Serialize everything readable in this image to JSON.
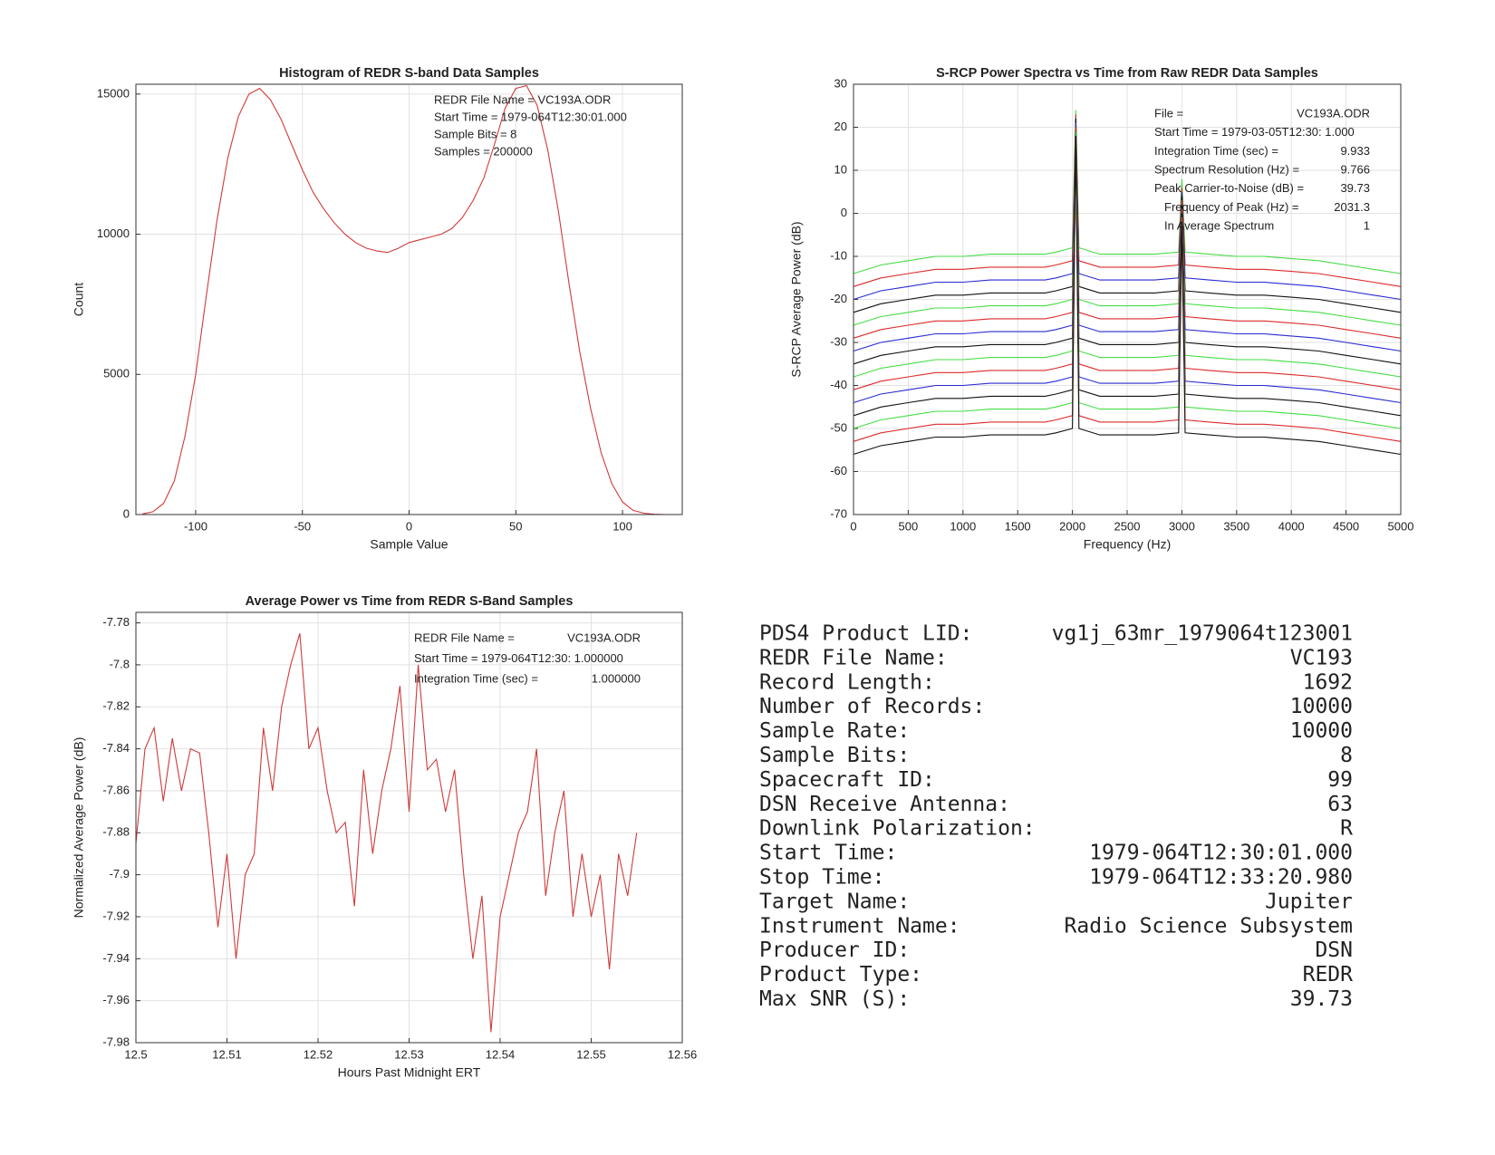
{
  "chart_data": [
    {
      "type": "line",
      "title": "Histogram of REDR S-band Data Samples",
      "xlabel": "Sample Value",
      "ylabel": "Count",
      "xlim": [
        -128,
        128
      ],
      "ylim": [
        0,
        15350
      ],
      "xticks": [
        -100,
        -50,
        0,
        50,
        100
      ],
      "yticks": [
        0,
        5000,
        10000,
        15000
      ],
      "grid": true,
      "color": "#d03a3a",
      "annotations": [
        "REDR File Name = VC193A.ODR",
        "Start Time = 1979-064T12:30:01.000",
        "Sample Bits = 8",
        "Samples = 200000"
      ],
      "x": [
        -125,
        -120,
        -115,
        -110,
        -105,
        -100,
        -95,
        -90,
        -85,
        -80,
        -75,
        -70,
        -65,
        -60,
        -55,
        -50,
        -45,
        -40,
        -35,
        -30,
        -25,
        -20,
        -15,
        -10,
        -5,
        0,
        5,
        10,
        15,
        20,
        25,
        30,
        35,
        40,
        45,
        50,
        55,
        60,
        65,
        70,
        75,
        80,
        85,
        90,
        95,
        100,
        105,
        110,
        115,
        120,
        125
      ],
      "values": [
        20,
        100,
        400,
        1200,
        2800,
        5000,
        7800,
        10500,
        12700,
        14200,
        15000,
        15200,
        14800,
        14100,
        13200,
        12300,
        11500,
        10900,
        10400,
        10000,
        9700,
        9500,
        9400,
        9350,
        9500,
        9700,
        9800,
        9900,
        10000,
        10200,
        10600,
        11200,
        12000,
        13200,
        14500,
        15200,
        15300,
        14600,
        13000,
        10800,
        8200,
        5800,
        3800,
        2200,
        1100,
        450,
        150,
        50,
        10,
        0,
        0
      ]
    },
    {
      "type": "line",
      "title": "S-RCP Power Spectra vs Time from Raw REDR Data Samples",
      "xlabel": "Frequency (Hz)",
      "ylabel": "S-RCP Average Power (dB)",
      "xlim": [
        0,
        5000
      ],
      "ylim": [
        -70,
        30
      ],
      "xticks": [
        0,
        500,
        1000,
        1500,
        2000,
        2500,
        3000,
        3500,
        4000,
        4500,
        5000
      ],
      "yticks": [
        -70,
        -60,
        -50,
        -40,
        -30,
        -20,
        -10,
        0,
        10,
        20,
        30
      ],
      "grid": true,
      "annotations": [
        [
          "File =",
          "VC193A.ODR"
        ],
        [
          "Start Time = 1979-03-05T12:30: 1.000",
          ""
        ],
        [
          "Integration Time (sec) =",
          "9.933"
        ],
        [
          "Spectrum Resolution (Hz) =",
          "9.766"
        ],
        [
          "Peak Carrier-to-Noise (dB) =",
          "39.73"
        ],
        [
          "Frequency of Peak (Hz) =",
          "2031.3"
        ],
        [
          "In Average Spectrum",
          "1"
        ]
      ],
      "x": [
        0,
        250,
        500,
        750,
        1000,
        1250,
        1500,
        1750,
        1850,
        2000,
        2031,
        2060,
        2250,
        2500,
        2750,
        2970,
        3000,
        3030,
        3250,
        3500,
        3750,
        4000,
        4250,
        4500,
        4750,
        5000
      ],
      "series": [
        {
          "color": "#44dd44",
          "values": [
            -14,
            -12,
            -11,
            -10,
            -10,
            -9.5,
            -9.5,
            -9.5,
            -9,
            -8,
            24,
            -8,
            -9.5,
            -9.5,
            -9.5,
            -9,
            8,
            -9,
            -9.5,
            -10,
            -10,
            -10.5,
            -11,
            -12,
            -13,
            -14
          ]
        },
        {
          "color": "#dd2a2a",
          "values": [
            -17,
            -15,
            -14,
            -13,
            -13,
            -12.5,
            -12.5,
            -12.5,
            -12,
            -11,
            23,
            -11,
            -12.5,
            -12.5,
            -12.5,
            -12,
            6,
            -12,
            -12.5,
            -13,
            -13,
            -13.5,
            -14,
            -15,
            -16,
            -17
          ]
        },
        {
          "color": "#2a2ad0",
          "values": [
            -20,
            -18,
            -17,
            -16,
            -16,
            -15.5,
            -15.5,
            -15.5,
            -15,
            -14,
            22,
            -14,
            -15.5,
            -15.5,
            -15.5,
            -15,
            5,
            -15,
            -15.5,
            -16,
            -16,
            -16.5,
            -17,
            -18,
            -19,
            -20
          ]
        },
        {
          "color": "#111111",
          "values": [
            -23,
            -21,
            -20,
            -19,
            -19,
            -18.5,
            -18.5,
            -18.5,
            -18,
            -17,
            22,
            -17,
            -18.5,
            -18.5,
            -18.5,
            -18,
            4,
            -18,
            -18.5,
            -19,
            -19,
            -19.5,
            -20,
            -21,
            -22,
            -23
          ]
        },
        {
          "color": "#44dd44",
          "values": [
            -26,
            -24,
            -23,
            -22,
            -22,
            -21.5,
            -21.5,
            -21.5,
            -21,
            -20,
            21,
            -20,
            -21.5,
            -21.5,
            -21.5,
            -21,
            3,
            -21,
            -21.5,
            -22,
            -22,
            -22.5,
            -23,
            -24,
            -25,
            -26
          ]
        },
        {
          "color": "#dd2a2a",
          "values": [
            -29,
            -27,
            -26,
            -25,
            -25,
            -24.5,
            -24.5,
            -24.5,
            -24,
            -23,
            21,
            -23,
            -24.5,
            -24.5,
            -24.5,
            -24,
            3,
            -24,
            -24.5,
            -25,
            -25,
            -25.5,
            -26,
            -27,
            -28,
            -29
          ]
        },
        {
          "color": "#2a2ad0",
          "values": [
            -32,
            -30,
            -29,
            -28,
            -28,
            -27.5,
            -27.5,
            -27.5,
            -27,
            -26,
            21,
            -26,
            -27.5,
            -27.5,
            -27.5,
            -27,
            2,
            -27,
            -27.5,
            -28,
            -28,
            -28.5,
            -29,
            -30,
            -31,
            -32
          ]
        },
        {
          "color": "#111111",
          "values": [
            -35,
            -33,
            -32,
            -31,
            -31,
            -30.5,
            -30.5,
            -30.5,
            -30,
            -29,
            20,
            -29,
            -30.5,
            -30.5,
            -30.5,
            -30,
            2,
            -30,
            -30.5,
            -31,
            -31,
            -31.5,
            -32,
            -33,
            -34,
            -35
          ]
        },
        {
          "color": "#44dd44",
          "values": [
            -38,
            -36,
            -35,
            -34,
            -34,
            -33.5,
            -33.5,
            -33.5,
            -33,
            -32,
            20,
            -32,
            -33.5,
            -33.5,
            -33.5,
            -33,
            1,
            -33,
            -33.5,
            -34,
            -34,
            -34.5,
            -35,
            -36,
            -37,
            -38
          ]
        },
        {
          "color": "#dd2a2a",
          "values": [
            -41,
            -39,
            -38,
            -37,
            -37,
            -36.5,
            -36.5,
            -36.5,
            -36,
            -35,
            20,
            -35,
            -36.5,
            -36.5,
            -36.5,
            -36,
            1,
            -36,
            -36.5,
            -37,
            -37,
            -37.5,
            -38,
            -39,
            -40,
            -41
          ]
        },
        {
          "color": "#2a2ad0",
          "values": [
            -44,
            -42,
            -41,
            -40,
            -40,
            -39.5,
            -39.5,
            -39.5,
            -39,
            -38,
            19,
            -38,
            -39.5,
            -39.5,
            -39.5,
            -39,
            0,
            -39,
            -39.5,
            -40,
            -40,
            -40.5,
            -41,
            -42,
            -43,
            -44
          ]
        },
        {
          "color": "#111111",
          "values": [
            -47,
            -45,
            -44,
            -43,
            -43,
            -42.5,
            -42.5,
            -42.5,
            -42,
            -41,
            19,
            -41,
            -42.5,
            -42.5,
            -42.5,
            -42,
            0,
            -42,
            -42.5,
            -43,
            -43,
            -43.5,
            -44,
            -45,
            -46,
            -47
          ]
        },
        {
          "color": "#44dd44",
          "values": [
            -50,
            -48,
            -47,
            -46,
            -46,
            -45.5,
            -45.5,
            -45.5,
            -45,
            -44,
            19,
            -44,
            -45.5,
            -45.5,
            -45.5,
            -45,
            -1,
            -45,
            -45.5,
            -46,
            -46,
            -46.5,
            -47,
            -48,
            -49,
            -50
          ]
        },
        {
          "color": "#dd2a2a",
          "values": [
            -53,
            -51,
            -50,
            -49,
            -49,
            -48.5,
            -48.5,
            -48.5,
            -48,
            -47,
            18,
            -47,
            -48.5,
            -48.5,
            -48.5,
            -48,
            -1,
            -48,
            -48.5,
            -49,
            -49,
            -49.5,
            -50,
            -51,
            -52,
            -53
          ]
        },
        {
          "color": "#111111",
          "values": [
            -56,
            -54,
            -53,
            -52,
            -52,
            -51.5,
            -51.5,
            -51.5,
            -51,
            -50,
            18,
            -50,
            -51.5,
            -51.5,
            -51.5,
            -51,
            -2,
            -51,
            -51.5,
            -52,
            -52,
            -52.5,
            -53,
            -54,
            -55,
            -56
          ]
        }
      ]
    },
    {
      "type": "line",
      "title": "Average Power vs Time from REDR S-Band Samples",
      "xlabel": "Hours Past Midnight ERT",
      "ylabel": "Normalized Average Power (dB)",
      "xlim": [
        12.5,
        12.56
      ],
      "ylim": [
        -7.98,
        -7.775
      ],
      "xticks": [
        12.5,
        12.51,
        12.52,
        12.53,
        12.54,
        12.55,
        12.56
      ],
      "yticks": [
        -7.98,
        -7.96,
        -7.94,
        -7.92,
        -7.9,
        -7.88,
        -7.86,
        -7.84,
        -7.82,
        -7.8,
        -7.78
      ],
      "grid": true,
      "color": "#d03a3a",
      "annotations": [
        [
          "REDR File Name =",
          "VC193A.ODR"
        ],
        [
          "Start Time = 1979-064T12:30: 1.000000",
          ""
        ],
        [
          "Integration Time (sec) =",
          "1.000000"
        ]
      ],
      "x": [
        12.5,
        12.501,
        12.502,
        12.503,
        12.504,
        12.505,
        12.506,
        12.507,
        12.508,
        12.509,
        12.51,
        12.511,
        12.512,
        12.513,
        12.514,
        12.515,
        12.516,
        12.517,
        12.518,
        12.519,
        12.52,
        12.521,
        12.522,
        12.523,
        12.524,
        12.525,
        12.526,
        12.527,
        12.528,
        12.529,
        12.53,
        12.531,
        12.532,
        12.533,
        12.534,
        12.535,
        12.536,
        12.537,
        12.538,
        12.539,
        12.54,
        12.541,
        12.542,
        12.543,
        12.544,
        12.545,
        12.546,
        12.547,
        12.548,
        12.549,
        12.55,
        12.551,
        12.552,
        12.553,
        12.554,
        12.555
      ],
      "values": [
        -7.885,
        -7.84,
        -7.83,
        -7.865,
        -7.835,
        -7.86,
        -7.84,
        -7.842,
        -7.88,
        -7.925,
        -7.89,
        -7.94,
        -7.9,
        -7.89,
        -7.83,
        -7.86,
        -7.82,
        -7.8,
        -7.785,
        -7.84,
        -7.83,
        -7.86,
        -7.88,
        -7.875,
        -7.915,
        -7.85,
        -7.89,
        -7.86,
        -7.84,
        -7.81,
        -7.87,
        -7.8,
        -7.85,
        -7.845,
        -7.87,
        -7.85,
        -7.9,
        -7.94,
        -7.91,
        -7.975,
        -7.92,
        -7.9,
        -7.88,
        -7.87,
        -7.84,
        -7.91,
        -7.88,
        -7.86,
        -7.92,
        -7.89,
        -7.92,
        -7.9,
        -7.945,
        -7.89,
        -7.91,
        -7.88
      ]
    }
  ],
  "info_table": {
    "rows": [
      [
        "PDS4 Product LID:",
        "vg1j_63mr_1979064t123001"
      ],
      [
        "REDR File Name:",
        "VC193"
      ],
      [
        "Record Length:",
        "1692"
      ],
      [
        "Number of Records:",
        "10000"
      ],
      [
        "Sample Rate:",
        "10000"
      ],
      [
        "Sample Bits:",
        "8"
      ],
      [
        "Spacecraft ID:",
        "99"
      ],
      [
        "DSN Receive Antenna:",
        "63"
      ],
      [
        "Downlink Polarization:",
        "R"
      ],
      [
        "Start Time:",
        "1979-064T12:30:01.000"
      ],
      [
        "Stop Time:",
        "1979-064T12:33:20.980"
      ],
      [
        "Target Name:",
        "Jupiter"
      ],
      [
        "Instrument Name:",
        "Radio Science Subsystem"
      ],
      [
        "Producer ID:",
        "DSN"
      ],
      [
        "Product Type:",
        "REDR"
      ],
      [
        "Max SNR (S):",
        "39.73"
      ]
    ]
  }
}
